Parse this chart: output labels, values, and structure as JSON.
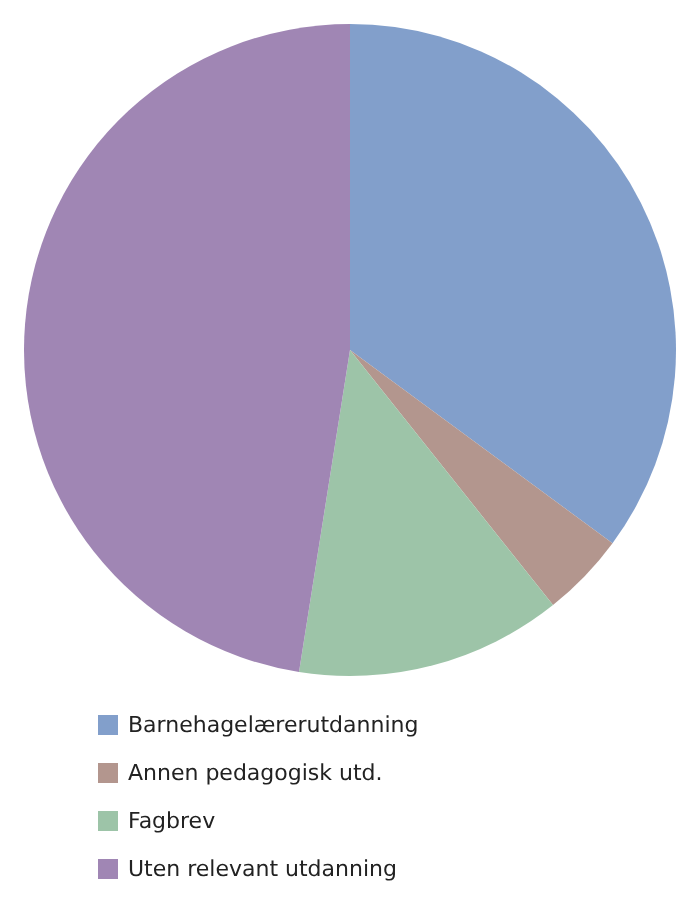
{
  "chart_data": {
    "type": "pie",
    "categories": [
      "Barnehagelærerutdanning",
      "Annen pedagogisk utd.",
      "Fagbrev",
      "Uten relevant utdanning"
    ],
    "values": [
      35.1,
      4.2,
      13.2,
      47.5
    ],
    "colors": [
      "#829fcb",
      "#b3968e",
      "#9dc4a8",
      "#a086b4"
    ],
    "legend": "bottom"
  }
}
